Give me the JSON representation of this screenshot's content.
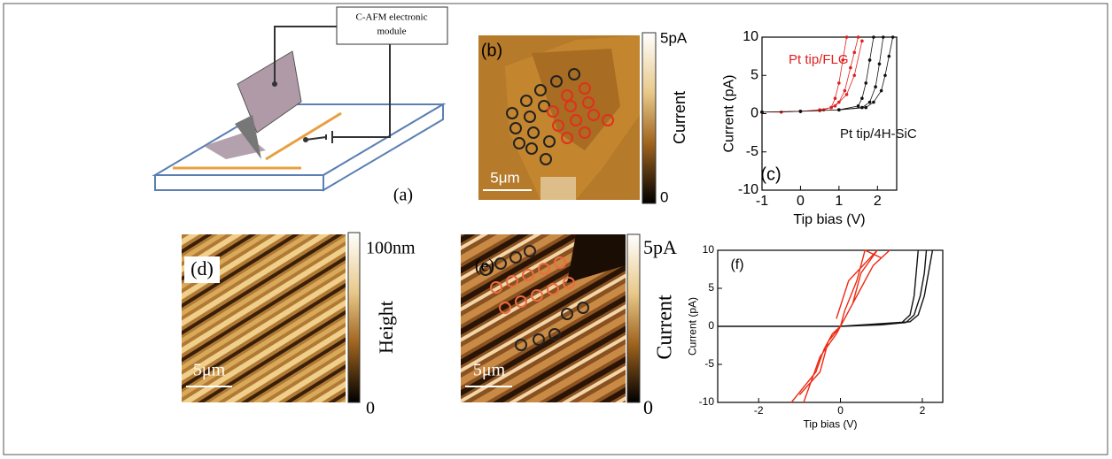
{
  "panels": {
    "a": {
      "label": "(a)",
      "module": [
        "C-AFM electronic",
        "module"
      ]
    },
    "b": {
      "label": "(b)",
      "scale": "5μm",
      "cbar_top": "5pA",
      "cbar_bottom": "0",
      "cbar_title": "Current"
    },
    "d": {
      "label": "(d)",
      "scale": "5μm",
      "cbar_top": "100nm",
      "cbar_bottom": "0",
      "cbar_title": "Height"
    },
    "e": {
      "label": "(e)",
      "scale": "5μm",
      "cbar_top": "5pA",
      "cbar_bottom": "0",
      "cbar_title": "Current"
    }
  },
  "chart_data": [
    {
      "type": "line",
      "panel_label": "(c)",
      "xlabel": "Tip bias (V)",
      "ylabel": "Current (pA)",
      "xlim": [
        -1,
        2.5
      ],
      "xticks": [
        -1,
        0,
        1,
        2
      ],
      "ylim": [
        -10,
        10
      ],
      "yticks": [
        -10,
        -5,
        0,
        5,
        10
      ],
      "markers": true,
      "series": [
        {
          "name": "Pt tip/FLG",
          "color": "#e02020",
          "x": [
            -1,
            -0.5,
            0,
            0.5,
            0.8,
            0.9,
            1.0,
            1.1,
            1.2,
            null,
            -1,
            0,
            0.5,
            0.8,
            1.0,
            1.15,
            1.3,
            1.4,
            1.5,
            null,
            -1,
            0,
            0.6,
            0.9,
            1.2,
            1.4,
            1.6
          ],
          "values": [
            0.2,
            0.2,
            0.3,
            0.4,
            0.8,
            2,
            4,
            7,
            10,
            null,
            0.2,
            0.3,
            0.5,
            0.8,
            1.5,
            3,
            6,
            8,
            10,
            null,
            0.2,
            0.3,
            0.5,
            1,
            2.5,
            5,
            9.5
          ]
        },
        {
          "name": "Pt tip/4H-SiC",
          "color": "#111111",
          "x": [
            -1,
            0,
            1,
            1.5,
            1.6,
            1.7,
            1.8,
            1.9,
            null,
            -1,
            0,
            1,
            1.6,
            1.8,
            1.95,
            2.05,
            2.15,
            null,
            -1,
            0,
            1,
            1.7,
            1.9,
            2.1,
            2.2,
            2.3,
            2.4
          ],
          "values": [
            0.2,
            0.3,
            0.5,
            1,
            2,
            4,
            7,
            10,
            null,
            0.2,
            0.3,
            0.5,
            0.8,
            1.5,
            3.5,
            6.5,
            10,
            null,
            0.2,
            0.3,
            0.5,
            0.8,
            1.5,
            3,
            5,
            7.5,
            10
          ]
        }
      ]
    },
    {
      "type": "line",
      "panel_label": "(f)",
      "xlabel": "Tip bias (V)",
      "ylabel": "Current (pA)",
      "xlim": [
        -3,
        2.5
      ],
      "xticks": [
        -2,
        0,
        2
      ],
      "ylim": [
        -10,
        10
      ],
      "yticks": [
        -10,
        -5,
        0,
        5,
        10
      ],
      "markers": false,
      "series": [
        {
          "color": "#111111",
          "x": [
            -3,
            -1,
            0,
            1,
            1.5,
            1.7,
            1.8,
            1.9,
            null,
            -3,
            0,
            1,
            1.6,
            1.8,
            1.95,
            2.05,
            2.1,
            null,
            -3,
            0,
            1.7,
            1.9,
            2.05,
            2.15,
            2.25
          ],
          "values": [
            0,
            0,
            0,
            0.2,
            0.5,
            1.5,
            4,
            10,
            null,
            0,
            0,
            0.2,
            0.5,
            1.5,
            4,
            7,
            10,
            null,
            0,
            0,
            0.6,
            1.5,
            4,
            7,
            10
          ]
        },
        {
          "color": "#ee2a14",
          "x": [
            -1.2,
            -0.9,
            -0.6,
            -0.4,
            -0.2,
            0,
            0.2,
            0.5,
            0.8,
            1.2,
            null,
            -0.9,
            -0.7,
            -0.5,
            -0.1,
            0,
            0.1,
            0.4,
            0.6,
            1.0,
            null,
            -1.0,
            -0.5,
            -0.3,
            0,
            0.3,
            0.5,
            0.9,
            0.2,
            -0.1
          ],
          "values": [
            -10,
            -8,
            -6,
            -3,
            -1,
            0,
            2,
            5,
            8,
            10,
            null,
            -10,
            -7,
            -4,
            -1,
            0,
            2,
            6,
            10,
            9,
            null,
            -9,
            -6,
            -2,
            0,
            3,
            7,
            10,
            6,
            1
          ]
        }
      ]
    }
  ]
}
